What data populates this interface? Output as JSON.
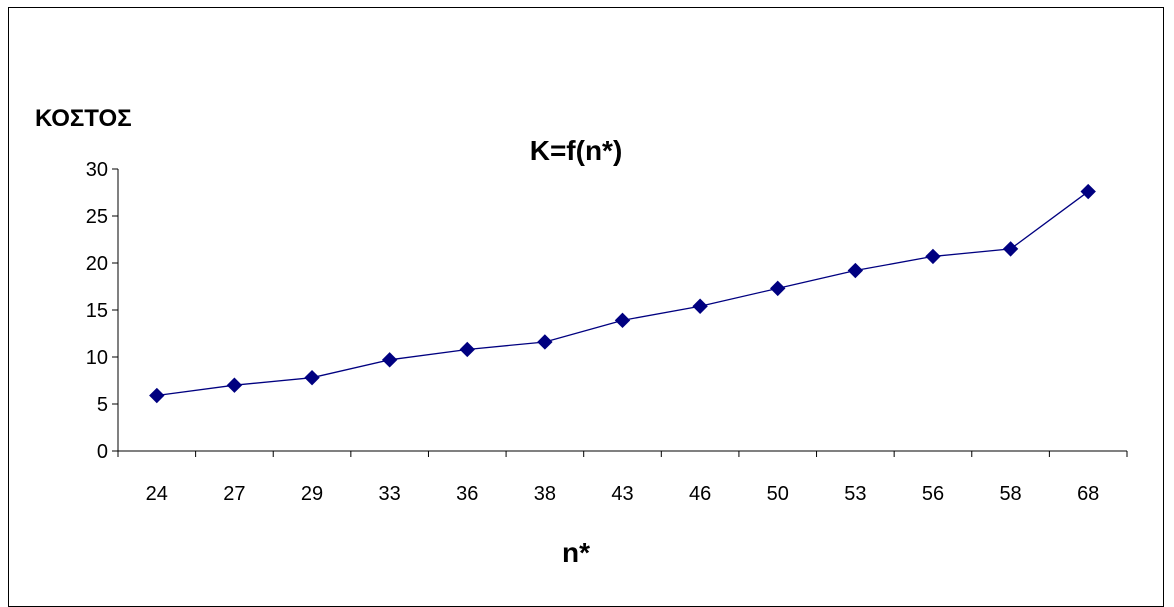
{
  "chart_data": {
    "type": "line",
    "title": "K=f(n*)",
    "xlabel": "n*",
    "ylabel": "ΚΟΣΤΟΣ",
    "categories": [
      "24",
      "27",
      "29",
      "33",
      "36",
      "38",
      "43",
      "46",
      "50",
      "53",
      "56",
      "58",
      "68"
    ],
    "series": [
      {
        "values": [
          5.9,
          7.0,
          7.8,
          9.7,
          10.8,
          11.6,
          13.9,
          15.4,
          17.3,
          19.2,
          20.7,
          21.5,
          27.6
        ]
      }
    ],
    "ylim": [
      0,
      30
    ],
    "yticks": [
      0,
      5,
      10,
      15,
      20,
      25,
      30
    ],
    "grid": false,
    "legend": "none",
    "colors": {
      "line": "#000080",
      "marker": "#000080",
      "axis": "#000000"
    },
    "marker": "diamond"
  }
}
